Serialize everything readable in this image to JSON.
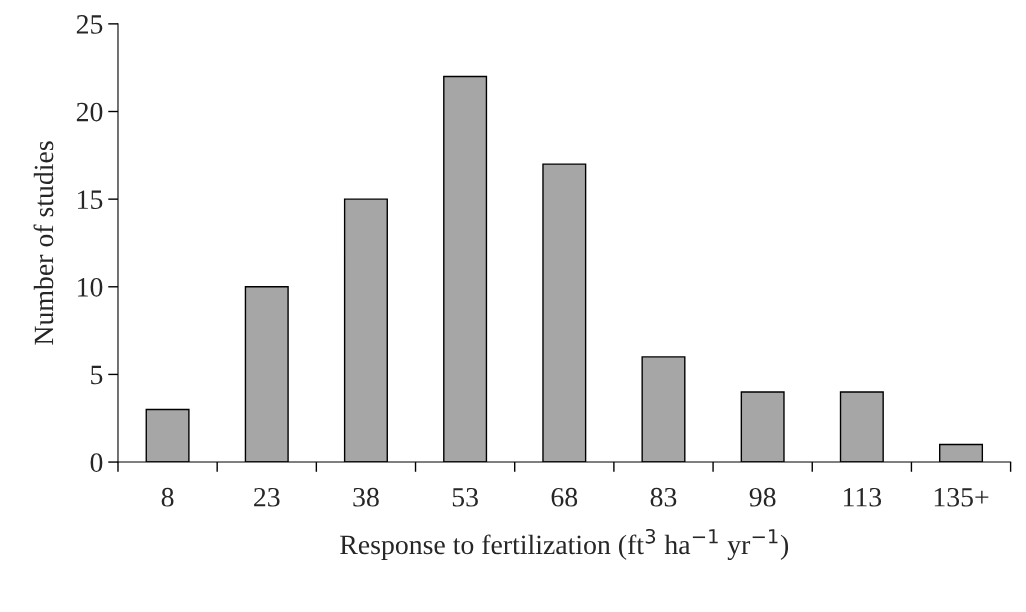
{
  "chart_data": {
    "type": "bar",
    "xlabel": "Response to fertilization (ft$^{3}$ ha$^{−1}$ yr$^{−1}$)",
    "ylabel": "Number of studies",
    "categories": [
      "8",
      "23",
      "38",
      "53",
      "68",
      "83",
      "98",
      "113",
      "135+"
    ],
    "values": [
      3,
      10,
      15,
      22,
      17,
      6,
      4,
      4,
      1
    ],
    "color": "#a6a6a6",
    "ylim": [
      0,
      25
    ],
    "yticks": [
      0,
      5,
      10,
      15,
      20,
      25
    ],
    "grid": false,
    "legend": false
  }
}
